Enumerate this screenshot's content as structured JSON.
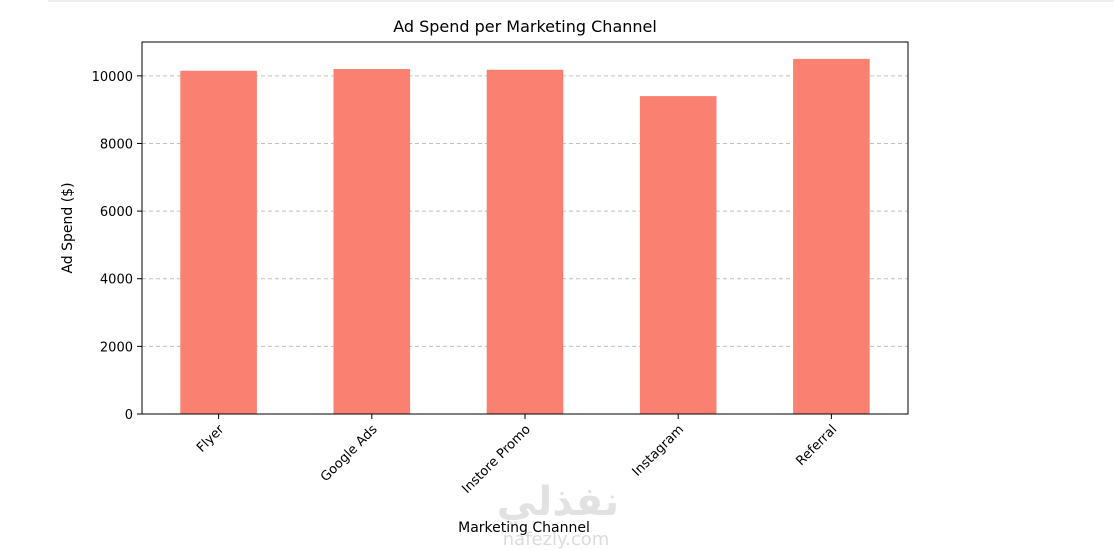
{
  "chart_data": {
    "type": "bar",
    "title": "Ad Spend per Marketing Channel",
    "xlabel": "Marketing Channel",
    "ylabel": "Ad Spend ($)",
    "categories": [
      "Flyer",
      "Google Ads",
      "Instore Promo",
      "Instagram",
      "Referral"
    ],
    "values": [
      10150,
      10200,
      10180,
      9400,
      10500
    ],
    "ylim": [
      0,
      11000
    ],
    "yticks": [
      0,
      2000,
      4000,
      6000,
      8000,
      10000
    ],
    "grid": "y, dashed",
    "legend": "none",
    "bar_color": "#fa8072",
    "xtick_rotation": -45
  },
  "watermark": {
    "arabic": "نفذلي",
    "url": "nafezly.com"
  }
}
